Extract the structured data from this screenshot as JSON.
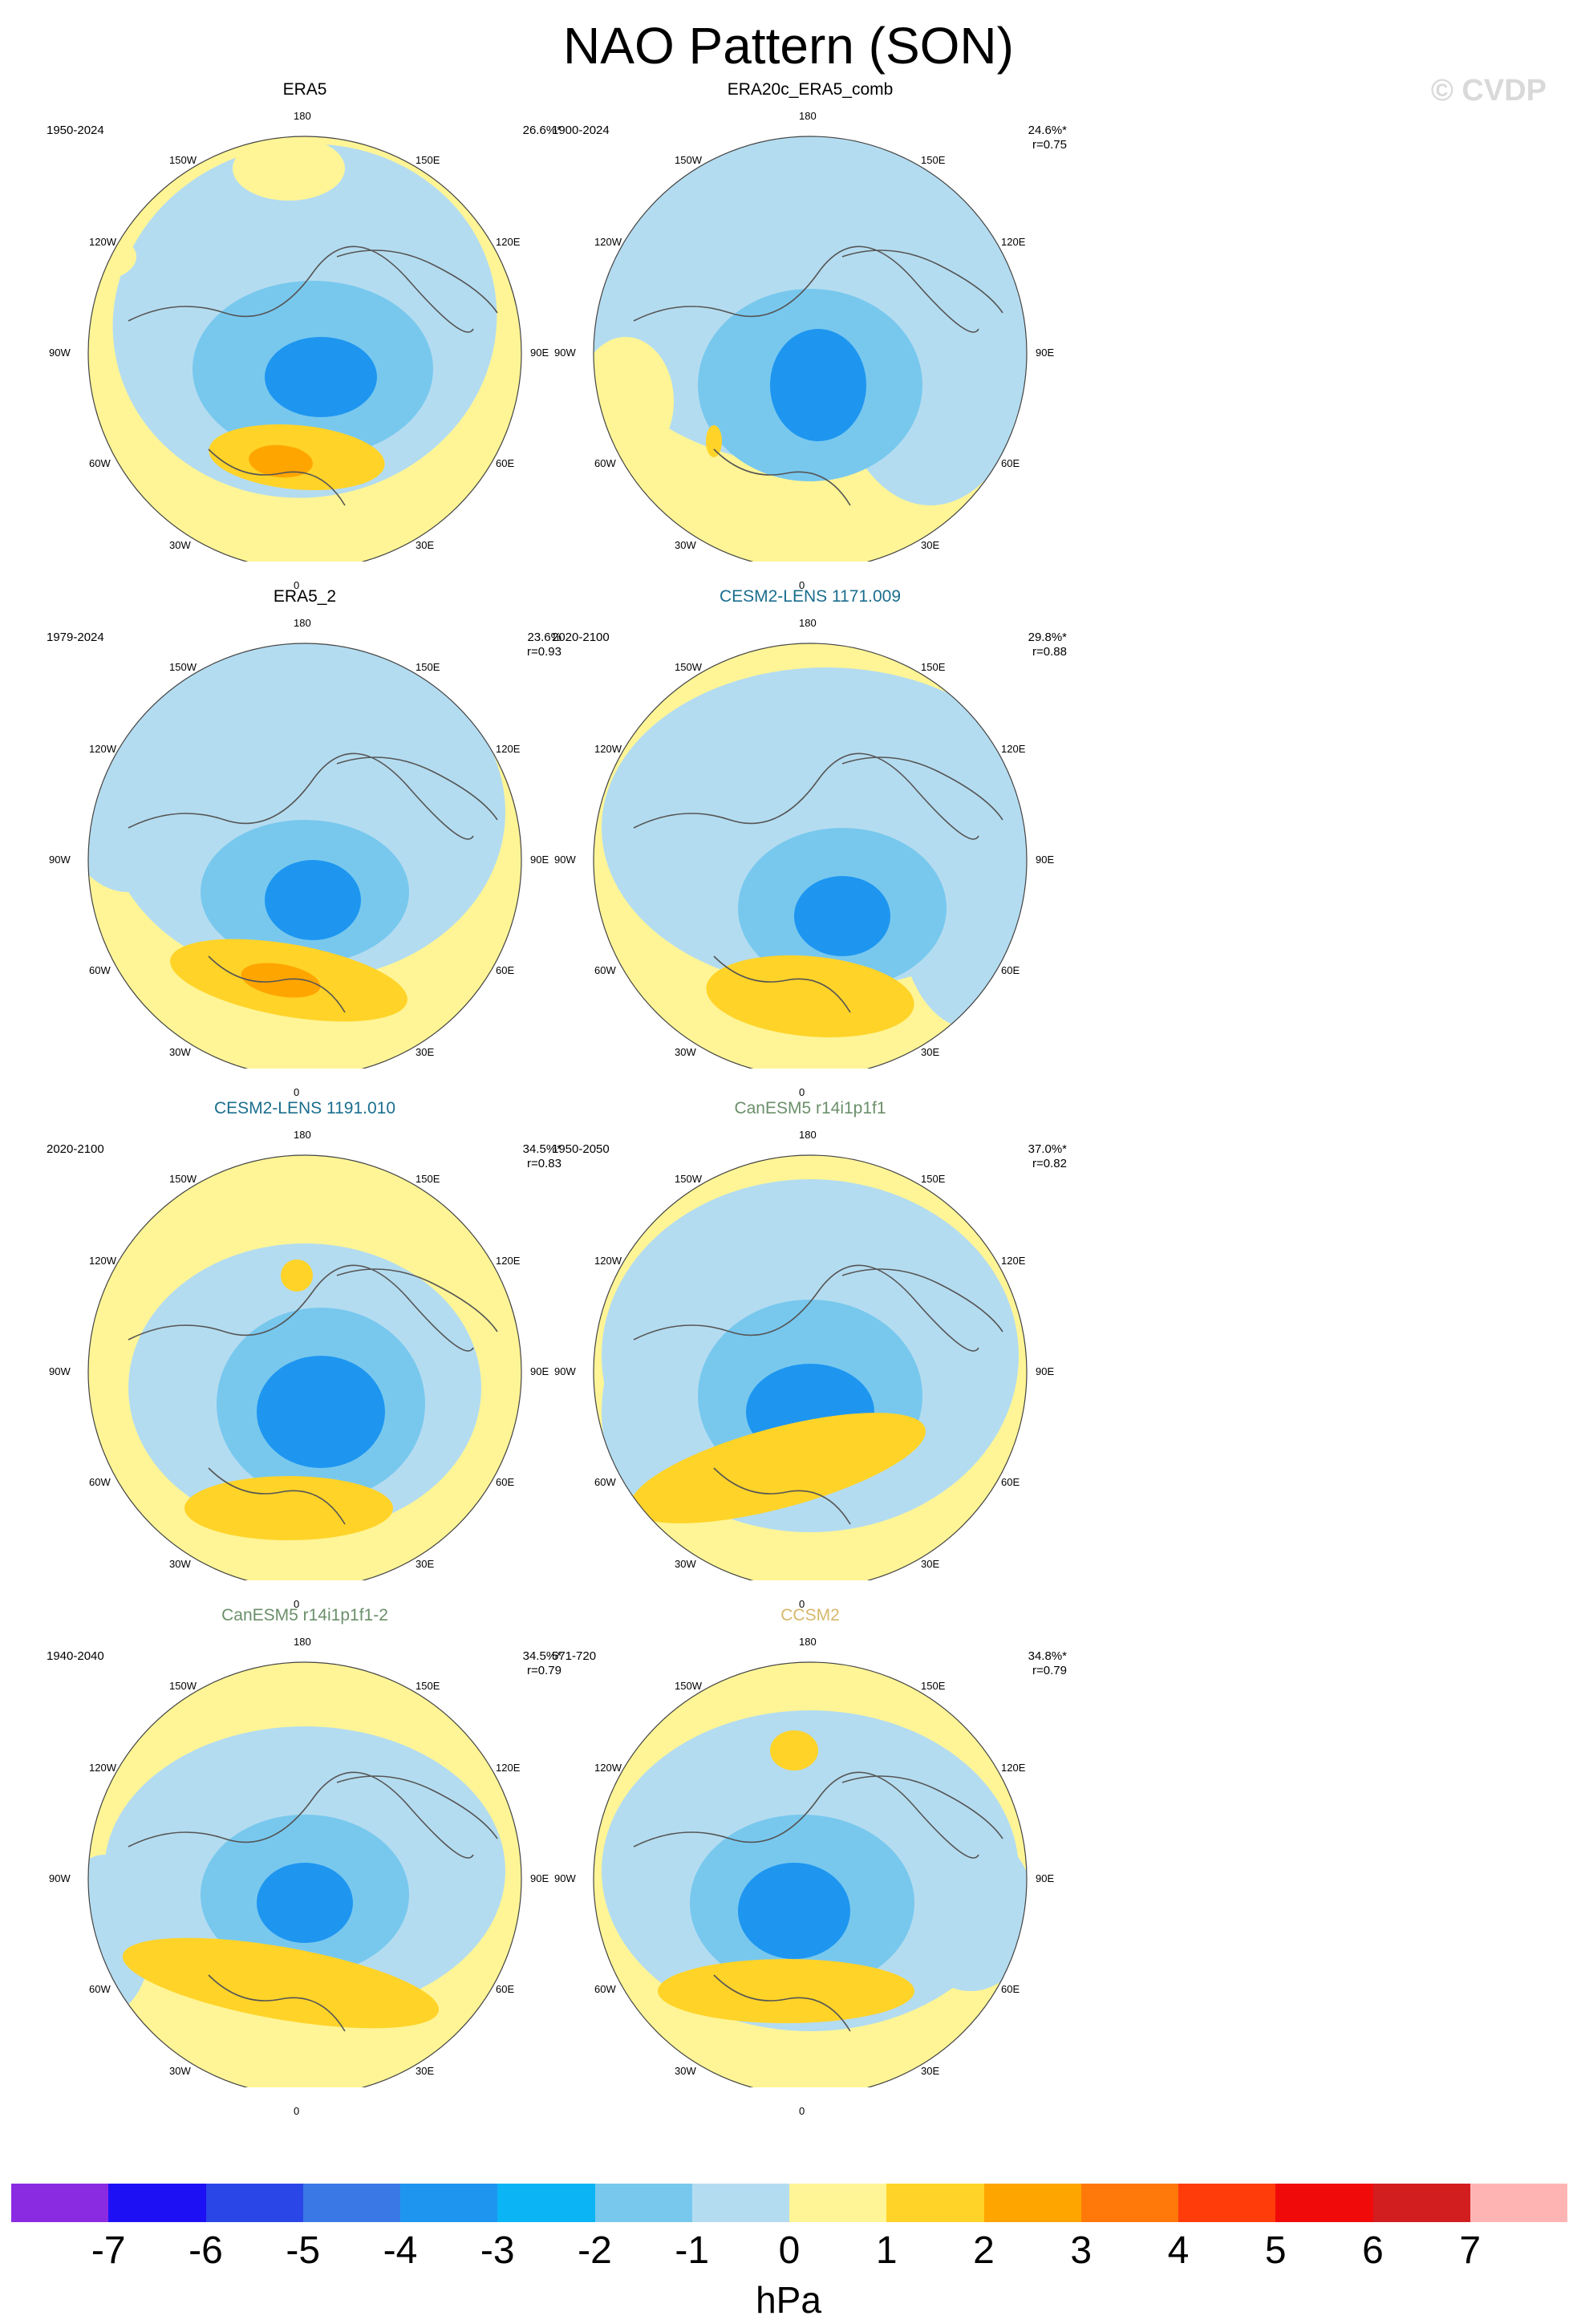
{
  "header": {
    "title": "NAO Pattern (SON)",
    "credit": "© CVDP"
  },
  "longitude_labels": {
    "top": "180",
    "bottom": "0",
    "left": "90W",
    "right": "90E",
    "upper_left": "150W",
    "upper_right": "150E",
    "mid_upper_left": "120W",
    "mid_upper_right": "120E",
    "mid_lower_left": "60W",
    "mid_lower_right": "60E",
    "lower_left": "30W",
    "lower_right": "30E"
  },
  "panels": [
    {
      "title": "ERA5",
      "title_color": "#000000",
      "period": "1950-2024",
      "pct": "26.6%*",
      "corr": ""
    },
    {
      "title": "ERA20c_ERA5_comb",
      "title_color": "#000000",
      "period": "1900-2024",
      "pct": "24.6%*",
      "corr": "r=0.75"
    },
    {
      "title": "ERA5_2",
      "title_color": "#000000",
      "period": "1979-2024",
      "pct": "23.6%",
      "corr": "r=0.93"
    },
    {
      "title": "CESM2-LENS 1171.009",
      "title_color": "#1a6e8e",
      "period": "2020-2100",
      "pct": "29.8%*",
      "corr": "r=0.88"
    },
    {
      "title": "CESM2-LENS 1191.010",
      "title_color": "#1a6e8e",
      "period": "2020-2100",
      "pct": "34.5%*",
      "corr": "r=0.83"
    },
    {
      "title": "CanESM5 r14i1p1f1",
      "title_color": "#6b8f6b",
      "period": "1950-2050",
      "pct": "37.0%*",
      "corr": "r=0.82"
    },
    {
      "title": "CanESM5 r14i1p1f1-2",
      "title_color": "#6b8f6b",
      "period": "1940-2040",
      "pct": "34.5%*",
      "corr": "r=0.79"
    },
    {
      "title": "CCSM2",
      "title_color": "#d6b86a",
      "period": "571-720",
      "pct": "34.8%*",
      "corr": "r=0.79"
    }
  ],
  "colorbar": {
    "units": "hPa",
    "tick_labels": [
      "-7",
      "-6",
      "-5",
      "-4",
      "-3",
      "-2",
      "-1",
      "0",
      "1",
      "2",
      "3",
      "4",
      "5",
      "6",
      "7"
    ],
    "colors": [
      "#8a2be2",
      "#1e10f5",
      "#2a46e6",
      "#3a78e6",
      "#1e96f0",
      "#0ab4f5",
      "#78c8ee",
      "#b4dcf0",
      "#fff596",
      "#ffd328",
      "#ffa500",
      "#ff780a",
      "#ff3c0a",
      "#f00a0a",
      "#d21e1e",
      "#ffb4b4"
    ]
  }
}
